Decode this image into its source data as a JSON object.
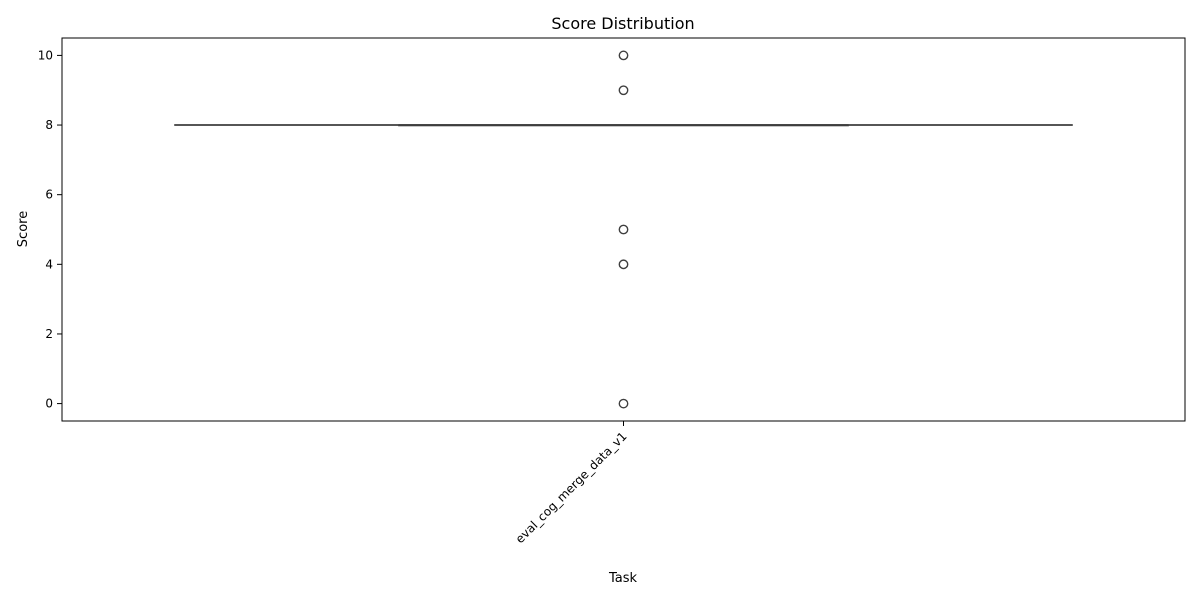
{
  "chart_data": {
    "type": "box",
    "title": "Score Distribution",
    "xlabel": "Task",
    "ylabel": "Score",
    "categories": [
      "eval_cog_merge_data_v1"
    ],
    "ylim": [
      -0.5,
      10.5
    ],
    "yticks": [
      0,
      2,
      4,
      6,
      8,
      10
    ],
    "boxes": [
      {
        "category": "eval_cog_merge_data_v1",
        "q1": 8,
        "median": 8,
        "q3": 8,
        "whisker_low": 8,
        "whisker_high": 8,
        "outliers": [
          10,
          9,
          5,
          4,
          0
        ]
      }
    ],
    "grid": false,
    "legend": "none",
    "colors": {
      "box_edge": "#3f3f3f",
      "outlier_edge": "#3f3f3f",
      "axis": "#000000"
    }
  }
}
